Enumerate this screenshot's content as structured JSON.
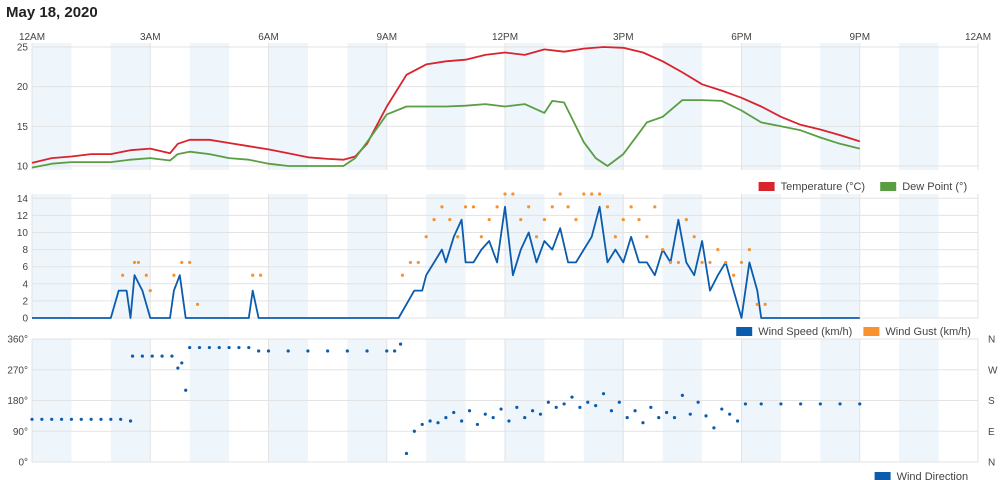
{
  "page": {
    "title": "May 18, 2020"
  },
  "colors": {
    "temperature": "#d9232d",
    "dew_point": "#5a9e44",
    "wind_speed": "#0b5cad",
    "wind_gust": "#f7922f",
    "wind_direction": "#0b5cad",
    "band_shade": "#eef5fb",
    "grid": "#e3e3e3"
  },
  "chart_data": [
    {
      "type": "line",
      "x_unit": "hour of day",
      "x_ticks": [
        "12AM",
        "3AM",
        "6AM",
        "9AM",
        "12PM",
        "3PM",
        "6PM",
        "9PM",
        "12AM"
      ],
      "xlim": [
        0,
        24
      ],
      "ylim": [
        9.5,
        25.5
      ],
      "y_ticks": [
        10,
        15,
        20,
        25
      ],
      "legend_position": "bottom-right",
      "grid": true,
      "series": [
        {
          "name": "Temperature (°C)",
          "x": [
            0,
            0.5,
            1,
            1.5,
            2,
            2.5,
            3,
            3.5,
            3.7,
            4,
            4.5,
            5,
            5.5,
            6,
            6.5,
            7,
            7.5,
            7.9,
            8.2,
            8.5,
            9,
            9.5,
            10,
            10.5,
            11,
            11.5,
            12,
            12.5,
            13,
            13.5,
            14,
            14.5,
            15,
            15.5,
            16,
            16.5,
            17,
            17.5,
            18,
            18.5,
            19,
            19.5,
            20,
            20.5,
            21
          ],
          "values": [
            10.4,
            11.0,
            11.2,
            11.5,
            11.5,
            12.0,
            12.2,
            11.6,
            12.8,
            13.3,
            13.3,
            12.9,
            12.5,
            12.1,
            11.6,
            11.1,
            10.9,
            10.8,
            11.2,
            12.8,
            17.5,
            21.5,
            22.8,
            23.2,
            23.4,
            24.0,
            24.3,
            24.0,
            24.7,
            24.4,
            24.8,
            25.0,
            24.9,
            24.3,
            23.2,
            21.8,
            20.3,
            19.5,
            18.6,
            17.5,
            16.2,
            15.2,
            14.6,
            13.9,
            13.1
          ]
        },
        {
          "name": "Dew Point (°)",
          "x": [
            0,
            0.5,
            1,
            1.5,
            2,
            2.5,
            3,
            3.5,
            3.7,
            4,
            4.5,
            5,
            5.5,
            6,
            6.5,
            7,
            7.5,
            7.9,
            8.2,
            8.5,
            9,
            9.5,
            10,
            10.5,
            11,
            11.5,
            12,
            12.5,
            13,
            13.2,
            13.5,
            14,
            14.3,
            14.6,
            15,
            15.3,
            15.6,
            16,
            16.5,
            17,
            17.5,
            18,
            18.5,
            19,
            19.5,
            20,
            20.5,
            21
          ],
          "values": [
            9.8,
            10.3,
            10.5,
            10.5,
            10.5,
            10.8,
            11.0,
            10.7,
            11.5,
            11.8,
            11.5,
            11.0,
            10.8,
            10.3,
            10.0,
            10.0,
            10.0,
            10.0,
            11.0,
            13.0,
            16.5,
            17.5,
            17.5,
            17.5,
            17.6,
            17.8,
            17.5,
            17.8,
            16.7,
            18.2,
            18.0,
            13.0,
            11.0,
            10.0,
            11.5,
            13.5,
            15.5,
            16.2,
            18.3,
            18.3,
            18.2,
            17.0,
            15.5,
            15.0,
            14.5,
            13.6,
            12.8,
            12.2
          ]
        }
      ]
    },
    {
      "type": "line",
      "x_unit": "hour of day",
      "xlim": [
        0,
        24
      ],
      "ylim": [
        0,
        14.5
      ],
      "y_ticks": [
        0,
        2,
        4,
        6,
        8,
        10,
        12,
        14
      ],
      "legend_position": "bottom-right",
      "grid": true,
      "series": [
        {
          "name": "Wind Speed (km/h)",
          "kind": "line",
          "x": [
            0,
            2.0,
            2.2,
            2.4,
            2.5,
            2.6,
            2.8,
            3.0,
            3.5,
            3.6,
            3.75,
            3.9,
            4.0,
            5.5,
            5.6,
            5.75,
            5.9,
            6.0,
            9.3,
            9.7,
            9.9,
            10.0,
            10.2,
            10.4,
            10.5,
            10.7,
            10.9,
            11.0,
            11.2,
            11.4,
            11.6,
            11.8,
            12.0,
            12.2,
            12.4,
            12.6,
            12.8,
            13.0,
            13.2,
            13.4,
            13.6,
            13.8,
            14.0,
            14.2,
            14.4,
            14.6,
            14.8,
            15.0,
            15.2,
            15.4,
            15.6,
            15.8,
            16.0,
            16.2,
            16.4,
            16.6,
            16.8,
            17.0,
            17.2,
            17.4,
            17.6,
            17.8,
            18.0,
            18.2,
            18.4,
            18.5,
            18.6,
            21.0
          ],
          "values": [
            0,
            0,
            3.2,
            3.2,
            0.0,
            5.0,
            3.2,
            0,
            0,
            3.2,
            5.0,
            0,
            0,
            0,
            3.2,
            0,
            0,
            0,
            0,
            3.2,
            3.2,
            5.0,
            6.5,
            8.0,
            6.5,
            9.5,
            11.5,
            6.5,
            6.5,
            8.0,
            9.0,
            6.5,
            13.0,
            5.0,
            8.0,
            10.0,
            6.5,
            9.0,
            8.0,
            10.5,
            6.5,
            6.5,
            8.0,
            9.5,
            13.0,
            6.5,
            8.0,
            6.5,
            9.5,
            6.5,
            6.5,
            5.0,
            8.0,
            6.5,
            11.5,
            6.5,
            5.0,
            9.0,
            3.2,
            5.0,
            6.5,
            3.2,
            0,
            6.5,
            3.2,
            0,
            0,
            0
          ]
        },
        {
          "name": "Wind Gust (km/h)",
          "kind": "dots",
          "x": [
            2.3,
            2.6,
            2.7,
            2.9,
            3.0,
            3.6,
            3.8,
            4.0,
            4.2,
            5.6,
            5.8,
            9.4,
            9.6,
            9.8,
            10.0,
            10.2,
            10.4,
            10.6,
            10.8,
            11.0,
            11.2,
            11.4,
            11.6,
            11.8,
            12.0,
            12.2,
            12.4,
            12.6,
            12.8,
            13.0,
            13.2,
            13.4,
            13.6,
            13.8,
            14.0,
            14.2,
            14.4,
            14.6,
            14.8,
            15.0,
            15.2,
            15.4,
            15.6,
            15.8,
            16.0,
            16.2,
            16.4,
            16.6,
            16.8,
            17.0,
            17.2,
            17.4,
            17.6,
            17.8,
            18.0,
            18.2,
            18.4,
            18.6
          ],
          "values": [
            5.0,
            6.5,
            6.5,
            5.0,
            3.2,
            5.0,
            6.5,
            6.5,
            1.6,
            5.0,
            5.0,
            5.0,
            6.5,
            6.5,
            9.5,
            11.5,
            13.0,
            11.5,
            9.5,
            13.0,
            13.0,
            9.5,
            11.5,
            13.0,
            14.5,
            14.5,
            11.5,
            13.0,
            9.5,
            11.5,
            13.0,
            14.5,
            13.0,
            11.5,
            14.5,
            14.5,
            14.5,
            13.0,
            9.5,
            11.5,
            13.0,
            11.5,
            9.5,
            13.0,
            8.0,
            6.5,
            6.5,
            11.5,
            9.5,
            6.5,
            6.5,
            8.0,
            6.5,
            5.0,
            6.5,
            8.0,
            1.6,
            1.6
          ]
        }
      ]
    },
    {
      "type": "scatter",
      "x_unit": "hour of day",
      "xlim": [
        0,
        24
      ],
      "ylim": [
        0,
        360
      ],
      "y_ticks": [
        0,
        90,
        180,
        270,
        360
      ],
      "y_tick_labels": [
        "0°",
        "90°",
        "180°",
        "270°",
        "360°"
      ],
      "right_axis_labels": [
        "N",
        "E",
        "S",
        "W",
        "N"
      ],
      "legend_position": "bottom-right",
      "grid": true,
      "series": [
        {
          "name": "Wind Direction",
          "x": [
            0,
            0.25,
            0.5,
            0.75,
            1,
            1.25,
            1.5,
            1.75,
            2,
            2.25,
            2.5,
            2.55,
            2.8,
            3.05,
            3.3,
            3.55,
            3.7,
            3.8,
            3.9,
            4.0,
            4.25,
            4.5,
            4.75,
            5.0,
            5.25,
            5.5,
            5.75,
            6.0,
            6.5,
            7.0,
            7.5,
            8.0,
            8.5,
            9.0,
            9.2,
            9.35,
            9.5,
            9.7,
            9.9,
            10.1,
            10.3,
            10.5,
            10.7,
            10.9,
            11.1,
            11.3,
            11.5,
            11.7,
            11.9,
            12.1,
            12.3,
            12.5,
            12.7,
            12.9,
            13.1,
            13.3,
            13.5,
            13.7,
            13.9,
            14.1,
            14.3,
            14.5,
            14.7,
            14.9,
            15.1,
            15.3,
            15.5,
            15.7,
            15.9,
            16.1,
            16.3,
            16.5,
            16.7,
            16.9,
            17.1,
            17.3,
            17.5,
            17.7,
            17.9,
            18.1,
            18.5,
            19.0,
            19.5,
            20.0,
            20.5,
            21.0
          ],
          "values": [
            125,
            125,
            125,
            125,
            125,
            125,
            125,
            125,
            125,
            125,
            120,
            310,
            310,
            310,
            310,
            310,
            275,
            290,
            210,
            335,
            335,
            335,
            335,
            335,
            335,
            335,
            325,
            325,
            325,
            325,
            325,
            325,
            325,
            325,
            325,
            345,
            25,
            90,
            110,
            120,
            115,
            130,
            145,
            120,
            150,
            110,
            140,
            130,
            155,
            120,
            160,
            130,
            150,
            140,
            175,
            160,
            170,
            190,
            160,
            175,
            165,
            200,
            150,
            175,
            130,
            150,
            115,
            160,
            130,
            145,
            130,
            195,
            140,
            175,
            135,
            100,
            155,
            140,
            120,
            170,
            170,
            170,
            170,
            170,
            170,
            170
          ]
        }
      ]
    }
  ]
}
